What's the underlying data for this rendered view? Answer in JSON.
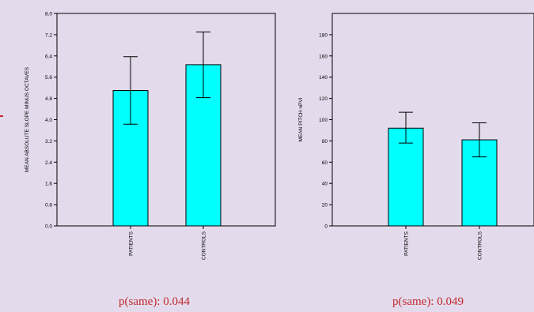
{
  "colors": {
    "bar_fill": "#00ffff",
    "axis": "#000000",
    "annotation": "#c0282d",
    "background": "#e3dbeb"
  },
  "chart_data": [
    {
      "type": "bar",
      "title": "",
      "xlabel": "",
      "ylabel": "MEAN ABSOLUTE SLOPE MINUS OCTAVES",
      "ylim": [
        0,
        8.0
      ],
      "yticks": [
        "0.0",
        "0.8",
        "1.6",
        "2.4",
        "3.2",
        "4.0",
        "4.8",
        "5.6",
        "6.4",
        "7.2",
        "8.0"
      ],
      "categories": [
        "PATIENTS",
        "CONTROLS"
      ],
      "values": [
        5.1,
        6.07
      ],
      "error_low": [
        3.83,
        4.83
      ],
      "error_high": [
        6.37,
        7.3
      ],
      "grid": false,
      "annotation": "p(same): 0.044"
    },
    {
      "type": "bar",
      "title": "",
      "xlabel": "",
      "ylabel": "MEAN PITCH nPVI",
      "ylim": [
        0,
        200
      ],
      "yticks": [
        "0",
        "20",
        "40",
        "60",
        "80",
        "100",
        "120",
        "140",
        "160",
        "180"
      ],
      "categories": [
        "PATIENTS",
        "CONTROLS"
      ],
      "values": [
        92,
        81
      ],
      "error_low": [
        78,
        65
      ],
      "error_high": [
        107,
        97
      ],
      "grid": false,
      "annotation": "p(same): 0.049"
    }
  ]
}
